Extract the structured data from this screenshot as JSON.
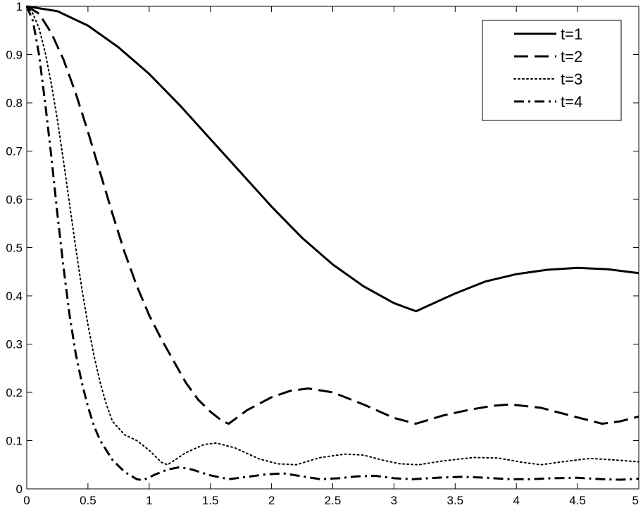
{
  "chart_data": {
    "type": "line",
    "title": "",
    "xlabel": "",
    "ylabel": "",
    "xlim": [
      0,
      5
    ],
    "ylim": [
      0,
      1
    ],
    "xticks": [
      "0",
      "0.5",
      "1",
      "1.5",
      "2",
      "2.5",
      "3",
      "3.5",
      "4",
      "4.5",
      "5"
    ],
    "yticks": [
      "0",
      "0.1",
      "0.2",
      "0.3",
      "0.4",
      "0.5",
      "0.6",
      "0.7",
      "0.8",
      "0.9",
      "1"
    ],
    "grid": false,
    "legend_position": "top-right",
    "series": [
      {
        "name": "t=1",
        "style": "solid",
        "color": "#000000",
        "points": [
          [
            0,
            1
          ],
          [
            0.25,
            0.99
          ],
          [
            0.5,
            0.96
          ],
          [
            0.75,
            0.915
          ],
          [
            1,
            0.86
          ],
          [
            1.25,
            0.795
          ],
          [
            1.5,
            0.725
          ],
          [
            1.75,
            0.655
          ],
          [
            2,
            0.585
          ],
          [
            2.25,
            0.52
          ],
          [
            2.5,
            0.465
          ],
          [
            2.75,
            0.42
          ],
          [
            3,
            0.385
          ],
          [
            3.18,
            0.368
          ],
          [
            3.5,
            0.405
          ],
          [
            3.75,
            0.43
          ],
          [
            4,
            0.445
          ],
          [
            4.25,
            0.454
          ],
          [
            4.5,
            0.458
          ],
          [
            4.75,
            0.455
          ],
          [
            5,
            0.447
          ]
        ]
      },
      {
        "name": "t=2",
        "style": "dashed",
        "color": "#000000",
        "points": [
          [
            0,
            1
          ],
          [
            0.1,
            0.985
          ],
          [
            0.2,
            0.945
          ],
          [
            0.3,
            0.89
          ],
          [
            0.4,
            0.82
          ],
          [
            0.5,
            0.74
          ],
          [
            0.6,
            0.655
          ],
          [
            0.7,
            0.57
          ],
          [
            0.8,
            0.49
          ],
          [
            0.9,
            0.42
          ],
          [
            1,
            0.36
          ],
          [
            1.1,
            0.31
          ],
          [
            1.2,
            0.265
          ],
          [
            1.3,
            0.22
          ],
          [
            1.4,
            0.185
          ],
          [
            1.5,
            0.16
          ],
          [
            1.6,
            0.14
          ],
          [
            1.65,
            0.135
          ],
          [
            1.8,
            0.163
          ],
          [
            2,
            0.19
          ],
          [
            2.15,
            0.203
          ],
          [
            2.3,
            0.208
          ],
          [
            2.5,
            0.2
          ],
          [
            2.75,
            0.175
          ],
          [
            3,
            0.147
          ],
          [
            3.18,
            0.135
          ],
          [
            3.4,
            0.152
          ],
          [
            3.6,
            0.163
          ],
          [
            3.8,
            0.172
          ],
          [
            3.95,
            0.175
          ],
          [
            4.2,
            0.168
          ],
          [
            4.5,
            0.148
          ],
          [
            4.7,
            0.135
          ],
          [
            4.85,
            0.14
          ],
          [
            5,
            0.15
          ]
        ]
      },
      {
        "name": "t=3",
        "style": "dotted",
        "color": "#000000",
        "points": [
          [
            0,
            1
          ],
          [
            0.05,
            0.985
          ],
          [
            0.1,
            0.955
          ],
          [
            0.15,
            0.905
          ],
          [
            0.2,
            0.84
          ],
          [
            0.25,
            0.765
          ],
          [
            0.3,
            0.68
          ],
          [
            0.35,
            0.59
          ],
          [
            0.4,
            0.5
          ],
          [
            0.45,
            0.415
          ],
          [
            0.5,
            0.34
          ],
          [
            0.55,
            0.275
          ],
          [
            0.6,
            0.22
          ],
          [
            0.65,
            0.175
          ],
          [
            0.7,
            0.14
          ],
          [
            0.8,
            0.112
          ],
          [
            0.9,
            0.1
          ],
          [
            1,
            0.08
          ],
          [
            1.1,
            0.055
          ],
          [
            1.15,
            0.05
          ],
          [
            1.3,
            0.075
          ],
          [
            1.45,
            0.092
          ],
          [
            1.55,
            0.095
          ],
          [
            1.7,
            0.085
          ],
          [
            1.9,
            0.062
          ],
          [
            2.05,
            0.052
          ],
          [
            2.2,
            0.05
          ],
          [
            2.4,
            0.065
          ],
          [
            2.6,
            0.072
          ],
          [
            2.75,
            0.07
          ],
          [
            2.9,
            0.06
          ],
          [
            3.05,
            0.052
          ],
          [
            3.2,
            0.05
          ],
          [
            3.4,
            0.058
          ],
          [
            3.65,
            0.065
          ],
          [
            3.85,
            0.064
          ],
          [
            4.05,
            0.055
          ],
          [
            4.2,
            0.05
          ],
          [
            4.4,
            0.057
          ],
          [
            4.6,
            0.063
          ],
          [
            4.8,
            0.06
          ],
          [
            5,
            0.056
          ]
        ]
      },
      {
        "name": "t=4",
        "style": "dashdot",
        "color": "#000000",
        "points": [
          [
            0,
            1
          ],
          [
            0.05,
            0.97
          ],
          [
            0.1,
            0.9
          ],
          [
            0.15,
            0.8
          ],
          [
            0.2,
            0.69
          ],
          [
            0.25,
            0.57
          ],
          [
            0.3,
            0.46
          ],
          [
            0.35,
            0.36
          ],
          [
            0.4,
            0.28
          ],
          [
            0.45,
            0.22
          ],
          [
            0.5,
            0.17
          ],
          [
            0.55,
            0.13
          ],
          [
            0.6,
            0.1
          ],
          [
            0.7,
            0.06
          ],
          [
            0.8,
            0.035
          ],
          [
            0.9,
            0.02
          ],
          [
            0.95,
            0.018
          ],
          [
            1.05,
            0.03
          ],
          [
            1.15,
            0.04
          ],
          [
            1.25,
            0.045
          ],
          [
            1.35,
            0.04
          ],
          [
            1.5,
            0.028
          ],
          [
            1.65,
            0.02
          ],
          [
            1.8,
            0.025
          ],
          [
            1.95,
            0.03
          ],
          [
            2.1,
            0.032
          ],
          [
            2.25,
            0.026
          ],
          [
            2.4,
            0.02
          ],
          [
            2.55,
            0.022
          ],
          [
            2.7,
            0.026
          ],
          [
            2.85,
            0.027
          ],
          [
            3,
            0.022
          ],
          [
            3.15,
            0.02
          ],
          [
            3.35,
            0.023
          ],
          [
            3.55,
            0.025
          ],
          [
            3.75,
            0.023
          ],
          [
            3.95,
            0.02
          ],
          [
            4.1,
            0.02
          ],
          [
            4.3,
            0.022
          ],
          [
            4.5,
            0.023
          ],
          [
            4.7,
            0.02
          ],
          [
            4.85,
            0.019
          ],
          [
            5,
            0.021
          ]
        ]
      }
    ]
  }
}
